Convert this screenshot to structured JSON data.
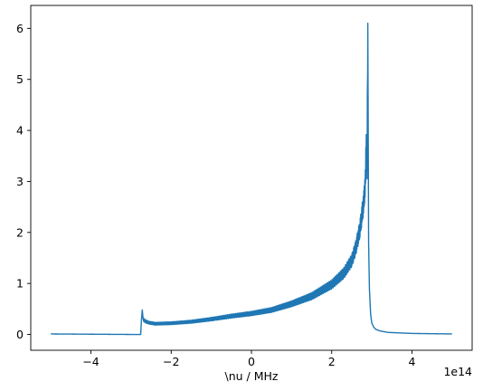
{
  "chart_data": {
    "type": "line",
    "title": "",
    "xlabel": "\\nu / MHz",
    "ylabel": "",
    "x_offset_label": "1e14",
    "x_scale": 100000000000000.0,
    "xlim": [
      -550000000000000.0,
      550000000000000.0
    ],
    "ylim": [
      -0.31,
      6.45
    ],
    "grid": false,
    "x_ticks": [
      {
        "value": -400000000000000.0,
        "label": "−4"
      },
      {
        "value": -200000000000000.0,
        "label": "−2"
      },
      {
        "value": 0,
        "label": "0"
      },
      {
        "value": 200000000000000.0,
        "label": "2"
      },
      {
        "value": 400000000000000.0,
        "label": "4"
      }
    ],
    "y_ticks": [
      {
        "value": 0,
        "label": "0"
      },
      {
        "value": 1,
        "label": "1"
      },
      {
        "value": 2,
        "label": "2"
      },
      {
        "value": 3,
        "label": "3"
      },
      {
        "value": 4,
        "label": "4"
      },
      {
        "value": 5,
        "label": "5"
      },
      {
        "value": 6,
        "label": "6"
      }
    ],
    "series": [
      {
        "color": "#1f77b4",
        "x": [
          -500000000000000.0,
          -400000000000000.0,
          -300000000000000.0,
          -276000000000000.0,
          -274000000000000.0,
          -272000000000000.0,
          -270000000000000.0,
          -265000000000000.0,
          -255000000000000.0,
          -240000000000000.0,
          -200000000000000.0,
          -150000000000000.0,
          -100000000000000.0,
          -50000000000000.0,
          0,
          50000000000000.0,
          100000000000000.0,
          150000000000000.0,
          200000000000000.0,
          230000000000000.0,
          250000000000000.0,
          260000000000000.0,
          270000000000000.0,
          280000000000000.0,
          284000000000000.0,
          286000000000000.0,
          288000000000000.0,
          290000000000000.0,
          291000000000000.0,
          292000000000000.0,
          294000000000000.0,
          297000000000000.0,
          300000000000000.0,
          305000000000000.0,
          310000000000000.0,
          320000000000000.0,
          340000000000000.0,
          400000000000000.0,
          500000000000000.0
        ],
        "y": [
          0.01,
          0.005,
          0.0,
          0.0,
          0.3,
          0.48,
          0.3,
          0.26,
          0.23,
          0.21,
          0.22,
          0.25,
          0.3,
          0.36,
          0.41,
          0.48,
          0.6,
          0.75,
          0.98,
          1.2,
          1.45,
          1.7,
          2.05,
          2.6,
          3.0,
          3.8,
          3.1,
          6.1,
          4.0,
          1.8,
          0.9,
          0.4,
          0.22,
          0.14,
          0.1,
          0.07,
          0.04,
          0.02,
          0.01
        ]
      }
    ]
  }
}
